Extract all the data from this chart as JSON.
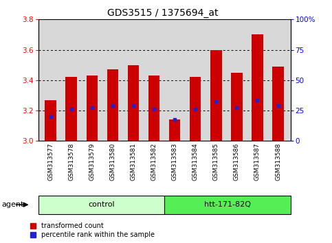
{
  "title": "GDS3515 / 1375694_at",
  "samples": [
    "GSM313577",
    "GSM313578",
    "GSM313579",
    "GSM313580",
    "GSM313581",
    "GSM313582",
    "GSM313583",
    "GSM313584",
    "GSM313585",
    "GSM313586",
    "GSM313587",
    "GSM313588"
  ],
  "transformed_count": [
    3.27,
    3.42,
    3.43,
    3.47,
    3.5,
    3.43,
    3.14,
    3.42,
    3.6,
    3.45,
    3.7,
    3.49
  ],
  "percentile_rank_y": [
    3.16,
    3.21,
    3.22,
    3.23,
    3.23,
    3.21,
    3.14,
    3.21,
    3.26,
    3.22,
    3.27,
    3.23
  ],
  "bar_bottom": 3.0,
  "red_color": "#cc0000",
  "blue_color": "#2222cc",
  "ylim_left": [
    3.0,
    3.8
  ],
  "ylim_right": [
    0,
    100
  ],
  "yticks_left": [
    3.0,
    3.2,
    3.4,
    3.6,
    3.8
  ],
  "yticks_right": [
    0,
    25,
    50,
    75,
    100
  ],
  "ytick_labels_right": [
    "0",
    "25",
    "50",
    "75",
    "100%"
  ],
  "groups": [
    {
      "label": "control",
      "start": 0,
      "end": 6,
      "color": "#ccffcc"
    },
    {
      "label": "htt-171-82Q",
      "start": 6,
      "end": 12,
      "color": "#55ee55"
    }
  ],
  "agent_label": "agent",
  "legend_red": "transformed count",
  "legend_blue": "percentile rank within the sample",
  "bar_width": 0.55,
  "plot_bg": "#ffffff",
  "tick_area_bg": "#d8d8d8"
}
